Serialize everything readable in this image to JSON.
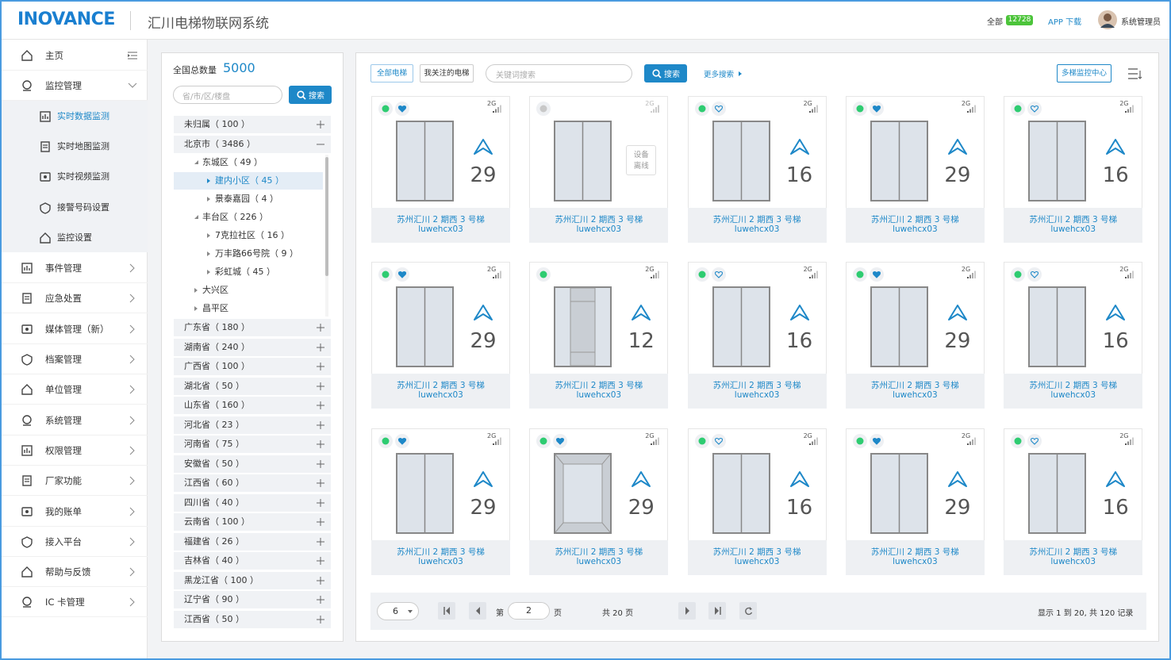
{
  "header": {
    "logo": "INOVANCE",
    "title": "汇川电梯物联网系统",
    "all_label": "全部",
    "all_count": "12728",
    "app_download": "APP 下载",
    "user": "系统管理员"
  },
  "sidebar": {
    "items": [
      {
        "label": "主页"
      },
      {
        "label": "监控管理",
        "expanded": true,
        "children": [
          {
            "label": "实时数据监测",
            "active": true
          },
          {
            "label": "实时地图监测"
          },
          {
            "label": "实时视频监测"
          },
          {
            "label": "接警号码设置"
          },
          {
            "label": "监控设置"
          }
        ]
      },
      {
        "label": "事件管理"
      },
      {
        "label": "应急处置"
      },
      {
        "label": "媒体管理（新）"
      },
      {
        "label": "档案管理"
      },
      {
        "label": "单位管理"
      },
      {
        "label": "系统管理"
      },
      {
        "label": "权限管理"
      },
      {
        "label": "厂家功能"
      },
      {
        "label": "我的账单"
      },
      {
        "label": "接入平台"
      },
      {
        "label": "帮助与反馈"
      },
      {
        "label": "IC 卡管理"
      }
    ]
  },
  "tree": {
    "total_label": "全国总数量",
    "total": "5000",
    "search_placeholder": "省/市/区/楼盘",
    "search_button": "搜索",
    "nodes": [
      {
        "label": "未归属（ 100 ）",
        "level": 0,
        "expanded": false
      },
      {
        "label": "北京市（ 3486 ）",
        "level": 0,
        "expanded": true
      },
      {
        "label": "东城区（ 49 ）",
        "level": 1,
        "expanded": true
      },
      {
        "label": "建内小区（ 45 ）",
        "level": 2,
        "selected": true
      },
      {
        "label": "景泰嘉园（ 4 ）",
        "level": 2
      },
      {
        "label": "丰台区（ 226 ）",
        "level": 1,
        "expanded": true
      },
      {
        "label": "7克拉社区（ 16 ）",
        "level": 2
      },
      {
        "label": "万丰路66号院（ 9 ）",
        "level": 2
      },
      {
        "label": "彩虹城（ 45 ）",
        "level": 2
      },
      {
        "label": "大兴区",
        "level": 1,
        "expanded": false
      },
      {
        "label": "昌平区",
        "level": 1,
        "expanded": false
      },
      {
        "label": "广东省（ 180 ）",
        "level": 0,
        "expanded": false
      },
      {
        "label": "湖南省（ 240 ）",
        "level": 0,
        "expanded": false
      },
      {
        "label": "广西省（ 100 ）",
        "level": 0,
        "expanded": false
      },
      {
        "label": "湖北省（ 50 ）",
        "level": 0,
        "expanded": false
      },
      {
        "label": "山东省（ 160 ）",
        "level": 0,
        "expanded": false
      },
      {
        "label": "河北省（ 23 ）",
        "level": 0,
        "expanded": false
      },
      {
        "label": "河南省（ 75 ）",
        "level": 0,
        "expanded": false
      },
      {
        "label": "安徽省（ 50 ）",
        "level": 0,
        "expanded": false
      },
      {
        "label": "江西省（ 60 ）",
        "level": 0,
        "expanded": false
      },
      {
        "label": "四川省（ 40 ）",
        "level": 0,
        "expanded": false
      },
      {
        "label": "云南省（ 100 ）",
        "level": 0,
        "expanded": false
      },
      {
        "label": "福建省（ 26 ）",
        "level": 0,
        "expanded": false
      },
      {
        "label": "吉林省（ 40 ）",
        "level": 0,
        "expanded": false
      },
      {
        "label": "黑龙江省（ 100 ）",
        "level": 0,
        "expanded": false
      },
      {
        "label": "辽宁省（ 90 ）",
        "level": 0,
        "expanded": false
      },
      {
        "label": "江西省（ 50 ）",
        "level": 0,
        "expanded": false
      }
    ]
  },
  "toolbar": {
    "all_button": "全部电梯",
    "followed_button": "我关注的电梯",
    "search_placeholder": "关键词搜索",
    "search_button": "搜索",
    "more_search": "更多搜索",
    "multi_monitor": "多梯监控中心"
  },
  "cards": [
    {
      "name": "苏州汇川 2 期西 3 号梯",
      "code": "luwehcx03",
      "signal": "2G",
      "online": true,
      "favorite": true,
      "door": "closed",
      "floor": 29
    },
    {
      "name": "苏州汇川 2 期西 3 号梯",
      "code": "luwehcx03",
      "signal": "2G",
      "online": false,
      "door": "closed",
      "status": "设备离线"
    },
    {
      "name": "苏州汇川 2 期西 3 号梯",
      "code": "luwehcx03",
      "signal": "2G",
      "online": true,
      "favorite": false,
      "door": "closed",
      "floor": 16
    },
    {
      "name": "苏州汇川 2 期西 3 号梯",
      "code": "luwehcx03",
      "signal": "2G",
      "online": true,
      "favorite": true,
      "door": "closed",
      "floor": 29
    },
    {
      "name": "苏州汇川 2 期西 3 号梯",
      "code": "luwehcx03",
      "signal": "2G",
      "online": true,
      "favorite": false,
      "door": "closed",
      "floor": 16
    },
    {
      "name": "苏州汇川 2 期西 3 号梯",
      "code": "luwehcx03",
      "signal": "2G",
      "online": true,
      "favorite": true,
      "door": "closed",
      "floor": 29
    },
    {
      "name": "苏州汇川 2 期西 3 号梯",
      "code": "luwehcx03",
      "signal": "2G",
      "online": true,
      "door": "opening",
      "floor": 12
    },
    {
      "name": "苏州汇川 2 期西 3 号梯",
      "code": "luwehcx03",
      "signal": "2G",
      "online": true,
      "favorite": false,
      "door": "closed",
      "floor": 16
    },
    {
      "name": "苏州汇川 2 期西 3 号梯",
      "code": "luwehcx03",
      "signal": "2G",
      "online": true,
      "favorite": true,
      "door": "closed",
      "floor": 29
    },
    {
      "name": "苏州汇川 2 期西 3 号梯",
      "code": "luwehcx03",
      "signal": "2G",
      "online": true,
      "favorite": false,
      "door": "closed",
      "floor": 16
    },
    {
      "name": "苏州汇川 2 期西 3 号梯",
      "code": "luwehcx03",
      "signal": "2G",
      "online": true,
      "favorite": true,
      "door": "closed",
      "floor": 29
    },
    {
      "name": "苏州汇川 2 期西 3 号梯",
      "code": "luwehcx03",
      "signal": "2G",
      "online": true,
      "favorite": true,
      "door": "open",
      "floor": 29
    },
    {
      "name": "苏州汇川 2 期西 3 号梯",
      "code": "luwehcx03",
      "signal": "2G",
      "online": true,
      "favorite": false,
      "door": "closed",
      "floor": 16
    },
    {
      "name": "苏州汇川 2 期西 3 号梯",
      "code": "luwehcx03",
      "signal": "2G",
      "online": true,
      "favorite": true,
      "door": "closed",
      "floor": 29
    },
    {
      "name": "苏州汇川 2 期西 3 号梯",
      "code": "luwehcx03",
      "signal": "2G",
      "online": true,
      "favorite": false,
      "door": "closed",
      "floor": 16
    }
  ],
  "pagination": {
    "page_size": "6",
    "page_prefix": "第",
    "page": "2",
    "page_suffix": "页",
    "total_pages": "共 20 页",
    "summary": "显示 1 到 20, 共 120 记录"
  }
}
